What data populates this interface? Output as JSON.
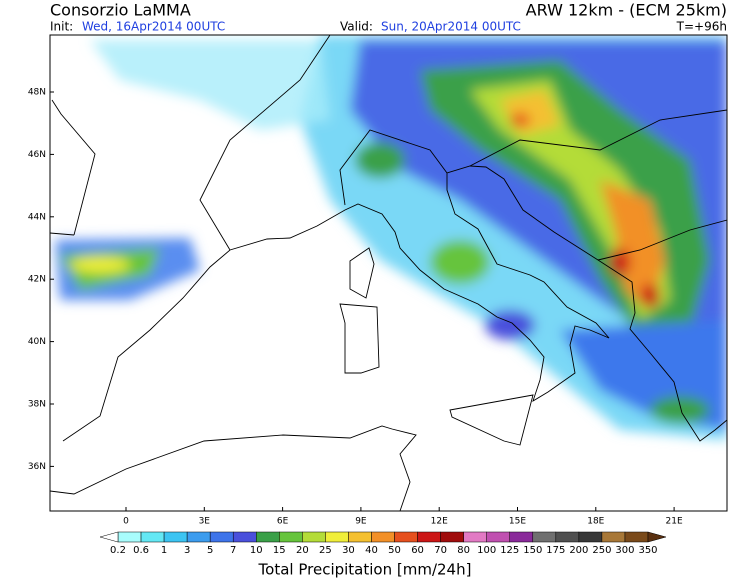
{
  "header": {
    "title": "Consorzio LaMMA",
    "model": "ARW 12km - (ECM 25km)",
    "init_label": "Init:",
    "init": "Wed, 16Apr2014 00UTC",
    "valid_label": "Valid:",
    "valid": "Sun, 20Apr2014 00UTC",
    "lead": "T=+96h"
  },
  "map": {
    "lat_labels": [
      "48N",
      "46N",
      "44N",
      "42N",
      "40N",
      "38N",
      "36N"
    ],
    "lon_labels": [
      "0",
      "3E",
      "6E",
      "9E",
      "12E",
      "15E",
      "18E",
      "21E"
    ]
  },
  "colorbar": {
    "title": "Total Precipitation [mm/24h]",
    "labels": [
      0.2,
      0.6,
      1,
      3,
      5,
      7,
      10,
      15,
      20,
      25,
      30,
      40,
      50,
      60,
      70,
      80,
      100,
      125,
      150,
      175,
      200,
      250,
      300,
      350
    ],
    "colors": [
      "#a8fcfc",
      "#64e8f4",
      "#3cc4f2",
      "#3c9cee",
      "#3e74ea",
      "#4a50dc",
      "#3aa048",
      "#66c43c",
      "#b4dc38",
      "#f0ee3a",
      "#f4c030",
      "#f29028",
      "#e6501e",
      "#cc1616",
      "#a00c0c",
      "#e27ac4",
      "#c050b0",
      "#8a2a9a",
      "#707070",
      "#505050",
      "#383838",
      "#a87838",
      "#7a4a1a"
    ],
    "under_color": "#ffffff",
    "over_color": "#5a3010"
  }
}
